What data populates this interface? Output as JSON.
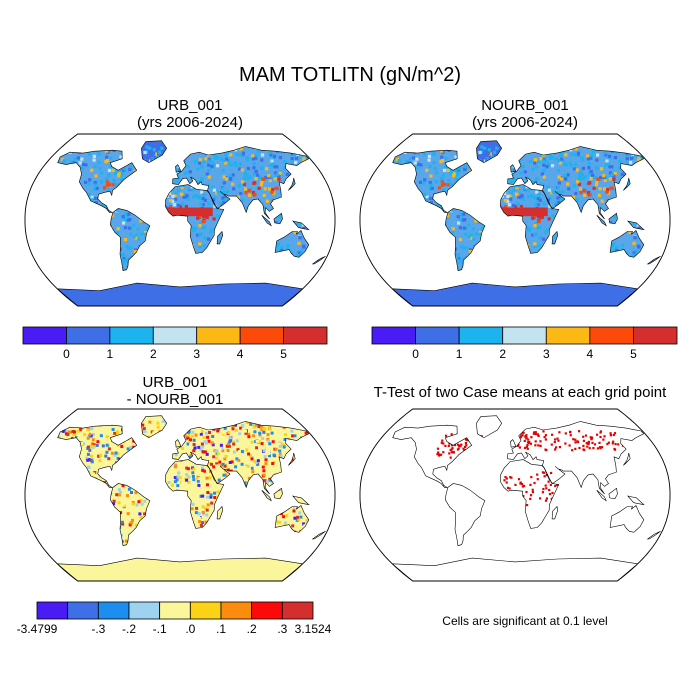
{
  "figure": {
    "title": "MAM TOTLITN (gN/m^2)"
  },
  "panels": [
    {
      "id": "urb",
      "title_line1": "URB_001",
      "title_line2": "(yrs 2006-2024)"
    },
    {
      "id": "nourb",
      "title_line1": "NOURB_001",
      "title_line2": "(yrs 2006-2024)"
    },
    {
      "id": "diff",
      "title_line1": "URB_001",
      "title_line2": "- NOURB_001"
    },
    {
      "id": "ttest",
      "title_line1": "T-Test of two Case means at each grid point",
      "title_line2": ""
    }
  ],
  "colorbars": {
    "absolute": {
      "colors": [
        "#4a1cf5",
        "#3f6fe6",
        "#1cb3ee",
        "#c4e3f1",
        "#fcb814",
        "#fb4a0a",
        "#d42e2e"
      ],
      "labels": [
        "0",
        "1",
        "2",
        "3",
        "4",
        "5"
      ]
    },
    "difference": {
      "colors": [
        "#4a1cf5",
        "#3f6fe6",
        "#1c8ef0",
        "#9dd2f0",
        "#fbf69b",
        "#fcd216",
        "#fc8c0e",
        "#fc0a0a",
        "#d42e2e"
      ],
      "labels": [
        "-3.4799",
        "-.3",
        "-.2",
        "-.1",
        ".0",
        ".1",
        ".2",
        ".3",
        "3.1524"
      ]
    }
  },
  "significance_note": "Cells are significant at 0.1 level",
  "colors": {
    "ocean": "#ffffff",
    "frame": "#000000",
    "significant_cell": "#e50000",
    "antarctica_abs": "#3f6fe6",
    "antarctica_diff": "#fbf69b"
  }
}
